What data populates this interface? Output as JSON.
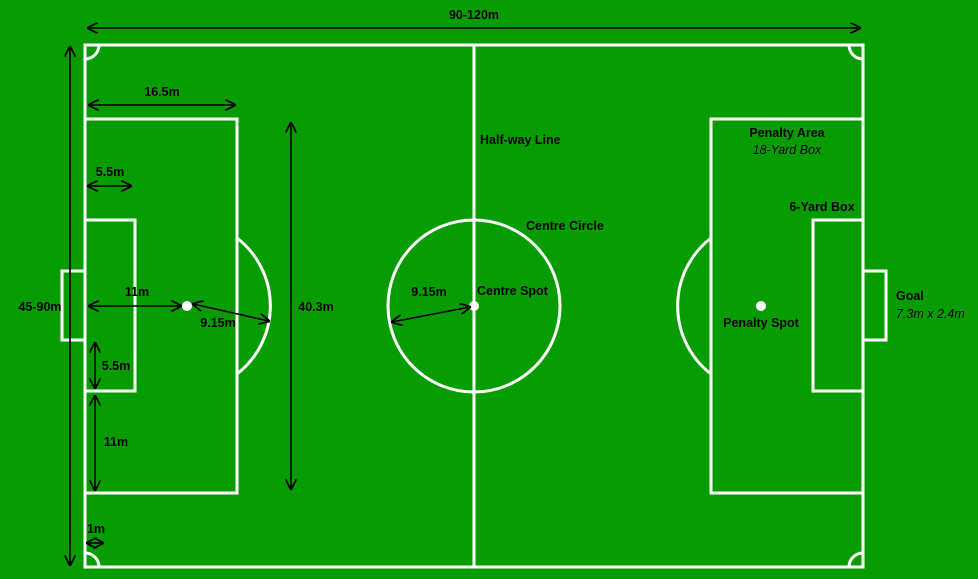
{
  "colors": {
    "grass": "#079d02",
    "lines": "#ffffff",
    "annotations": "#000000"
  },
  "labels": {
    "overall_length": "90-120m",
    "overall_width": "45-90m",
    "penalty_area_depth": "16.5m",
    "goal_area_depth": "5.5m",
    "penalty_spot_distance": "11m",
    "penalty_arc_radius": "9.15m",
    "penalty_area_width": "40.3m",
    "goal_area_offset": "5.5m",
    "penalty_area_offset": "11m",
    "corner_arc_radius": "1m",
    "halfway_line": "Half-way Line",
    "centre_circle": "Centre Circle",
    "centre_circle_radius": "9.15m",
    "centre_spot": "Centre Spot",
    "penalty_area": "Penalty Area",
    "penalty_area_alias": "18-Yard Box",
    "six_yard_box": "6-Yard Box",
    "goal": "Goal",
    "goal_size": "7.3m x 2.4m",
    "penalty_spot": "Penalty Spot"
  }
}
